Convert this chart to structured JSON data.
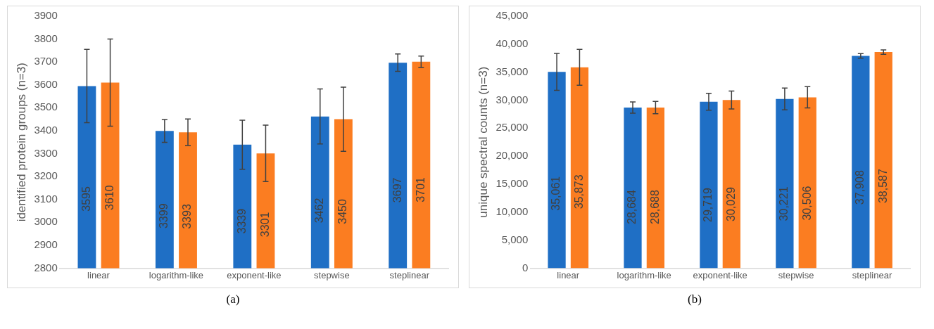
{
  "chart_data": [
    {
      "type": "bar",
      "ylabel": "identified protein groups (n=3)",
      "categories": [
        "linear",
        "logarithm-like",
        "exponent-like",
        "stepwise",
        "steplinear"
      ],
      "ylim": [
        2800,
        3900
      ],
      "yticks": [
        2800,
        2900,
        3000,
        3100,
        3200,
        3300,
        3400,
        3500,
        3600,
        3700,
        3800,
        3900
      ],
      "grid": false,
      "data_labels": true,
      "annotations": [
        "(a)"
      ],
      "series": [
        {
          "color": "#1f6fc5",
          "values": [
            3595,
            3399,
            3339,
            3462,
            3697
          ],
          "errors": [
            160,
            50,
            107,
            120,
            38
          ]
        },
        {
          "color": "#fb7d21",
          "values": [
            3610,
            3393,
            3301,
            3450,
            3701
          ],
          "errors": [
            190,
            58,
            123,
            140,
            25
          ]
        }
      ]
    },
    {
      "type": "bar",
      "ylabel": "unique spectral counts (n=3)",
      "categories": [
        "linear",
        "logarithm-like",
        "exponent-like",
        "stepwise",
        "steplinear"
      ],
      "ylim": [
        0,
        45000
      ],
      "yticks": [
        {
          "value": 0,
          "label": "0"
        },
        {
          "value": 5000,
          "label": "5,000"
        },
        {
          "value": 10000,
          "label": "10,000"
        },
        {
          "value": 15000,
          "label": "15,000"
        },
        {
          "value": 20000,
          "label": "20,000"
        },
        {
          "value": 25000,
          "label": "25,000"
        },
        {
          "value": 30000,
          "label": "30,000"
        },
        {
          "value": 35000,
          "label": "35,000"
        },
        {
          "value": 40000,
          "label": "40,000"
        },
        {
          "value": 45000,
          "label": "45,000"
        }
      ],
      "grid": false,
      "annotations": [
        "(b)"
      ],
      "series": [
        {
          "color": "#1f6fc5",
          "values": [
            35061,
            28684,
            29719,
            30221,
            37908
          ],
          "errors": [
            3300,
            1000,
            1500,
            1950,
            400
          ],
          "value_labels": [
            "35,061",
            "28,684",
            "29,719",
            "30,221",
            "37,908"
          ]
        },
        {
          "color": "#fb7d21",
          "values": [
            35873,
            28688,
            30029,
            30506,
            38587
          ],
          "errors": [
            3200,
            1100,
            1600,
            1900,
            400
          ],
          "value_labels": [
            "35,873",
            "28,688",
            "30,029",
            "30,506",
            "38,587"
          ]
        }
      ]
    }
  ]
}
